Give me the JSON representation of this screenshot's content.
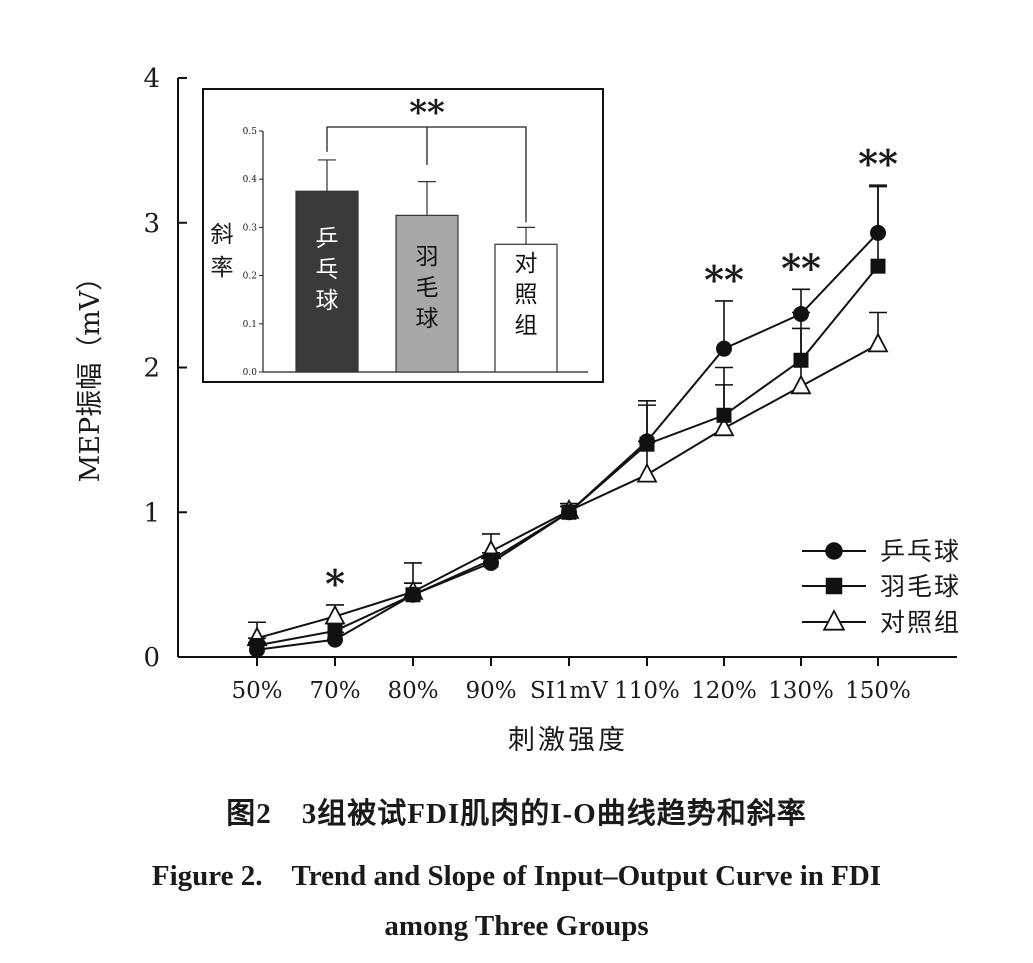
{
  "chart_data": [
    {
      "type": "line",
      "ylabel": "MEP振幅（mV）",
      "xlabel": "刺激强度",
      "categories": [
        "50%",
        "70%",
        "80%",
        "90%",
        "SI1mV",
        "110%",
        "120%",
        "130%",
        "150%"
      ],
      "ylim": [
        0,
        4
      ],
      "yticks": [
        "0",
        "1",
        "2",
        "3",
        "4"
      ],
      "grid": false,
      "legend_position": "bottom-right",
      "series": [
        {
          "name": "乒乓球",
          "marker": "circle-filled",
          "values": [
            0.05,
            0.12,
            0.43,
            0.65,
            1.0,
            1.49,
            2.13,
            2.37,
            2.93
          ],
          "err": [
            0.05,
            0.05,
            0.08,
            0.05,
            0.04,
            0.28,
            0.33,
            0.17,
            0.33
          ]
        },
        {
          "name": "羽毛球",
          "marker": "square-filled",
          "values": [
            0.08,
            0.18,
            0.43,
            0.67,
            1.0,
            1.47,
            1.67,
            2.05,
            2.7
          ],
          "err": [
            0.05,
            0.05,
            0.08,
            0.05,
            0.04,
            0.27,
            0.33,
            0.33,
            0.55
          ]
        },
        {
          "name": "对照组",
          "marker": "triangle-open",
          "values": [
            0.13,
            0.28,
            0.45,
            0.73,
            1.01,
            1.26,
            1.58,
            1.87,
            2.16
          ],
          "err": [
            0.11,
            0.08,
            0.2,
            0.12,
            0.05,
            0.23,
            0.3,
            0.4,
            0.22
          ]
        }
      ],
      "annotations": [
        {
          "category": "70%",
          "text": "*"
        },
        {
          "category": "120%",
          "text": "**"
        },
        {
          "category": "130%",
          "text": "**"
        },
        {
          "category": "150%",
          "text": "**"
        }
      ]
    },
    {
      "type": "bar",
      "ylabel": "斜率",
      "categories": [
        "乒乓球",
        "羽毛球",
        "对照组"
      ],
      "values": [
        0.375,
        0.325,
        0.265
      ],
      "err": [
        0.065,
        0.07,
        0.035
      ],
      "colors": [
        "#3a3a3a",
        "#a8a8a8",
        "#ffffff"
      ],
      "ylim": [
        0,
        0.5
      ],
      "yticks": [
        "0.0",
        "0.1",
        "0.2",
        "0.3",
        "0.4",
        "0.5"
      ],
      "significance": {
        "text": "**",
        "between": [
          "乒乓球",
          "对照组"
        ],
        "middle": "羽毛球"
      }
    }
  ],
  "caption": {
    "chinese": "图2　3组被试FDI肌肉的I-O曲线趋势和斜率",
    "english_line1": "Figure 2.　Trend and Slope of Input–Output Curve in FDI",
    "english_line2": "among Three Groups"
  }
}
